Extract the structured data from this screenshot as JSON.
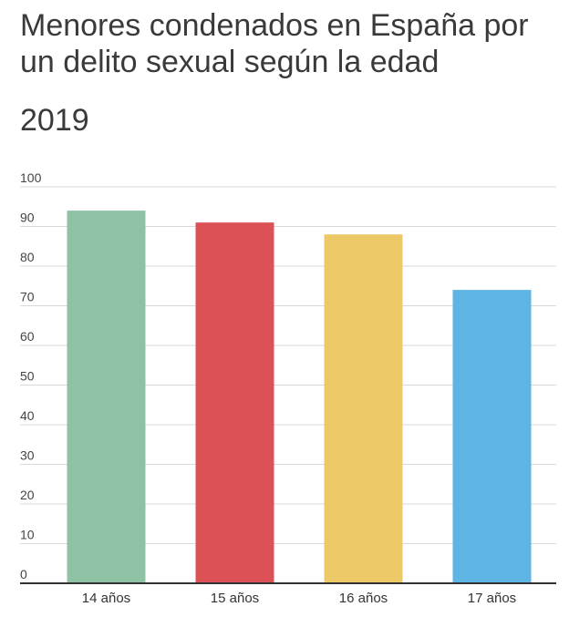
{
  "chart_data": {
    "type": "bar",
    "title": "Menores condenados en España por un delito sexual según la edad",
    "subtitle": "2019",
    "categories": [
      "14 años",
      "15 años",
      "16 años",
      "17 años"
    ],
    "values": [
      94,
      91,
      88,
      74
    ],
    "colors": [
      "#8fc1a5",
      "#dc5155",
      "#edc866",
      "#5eb4e3"
    ],
    "yticks": [
      0,
      10,
      20,
      30,
      40,
      50,
      60,
      70,
      80,
      90,
      100
    ],
    "ylim": [
      0,
      100
    ],
    "grid": true,
    "xlabel": "",
    "ylabel": ""
  }
}
